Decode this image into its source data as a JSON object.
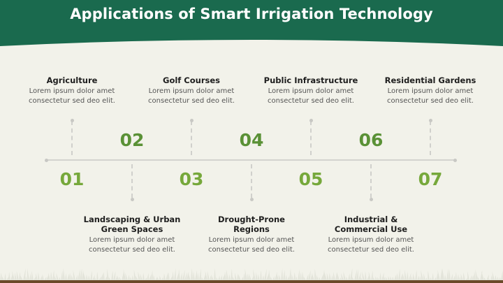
{
  "slide": {
    "title": "Applications of Smart Irrigation Technology",
    "colors": {
      "header": "#1a6a4e",
      "accent_green": "#76a83b",
      "soil": "#6b4a2a",
      "background": "#f2f2ea"
    }
  },
  "steps": [
    {
      "number": "01",
      "title": "Agriculture",
      "desc1": "Lorem ipsum dolor amet",
      "desc2": "consectetur sed deo elit."
    },
    {
      "number": "02",
      "title": "Landscaping & Urban Green Spaces",
      "title1": "Landscaping & Urban",
      "title2": "Green Spaces",
      "desc1": "Lorem ipsum dolor amet",
      "desc2": "consectetur sed deo elit."
    },
    {
      "number": "03",
      "title": "Golf Courses",
      "desc1": "Lorem ipsum dolor amet",
      "desc2": "consectetur sed deo elit."
    },
    {
      "number": "04",
      "title": "Drought-Prone Regions",
      "title1": "Drought-Prone",
      "title2": "Regions",
      "desc1": "Lorem ipsum dolor amet",
      "desc2": "consectetur sed deo elit."
    },
    {
      "number": "05",
      "title": "Public Infrastructure",
      "desc1": "Lorem ipsum dolor amet",
      "desc2": "consectetur sed deo elit."
    },
    {
      "number": "06",
      "title": "Industrial & Commercial Use",
      "title1": "Industrial &",
      "title2": "Commercial Use",
      "desc1": "Lorem ipsum dolor amet",
      "desc2": "consectetur sed deo elit."
    },
    {
      "number": "07",
      "title": "Residential Gardens",
      "desc1": "Lorem ipsum dolor amet",
      "desc2": "consectetur sed deo elit."
    }
  ]
}
